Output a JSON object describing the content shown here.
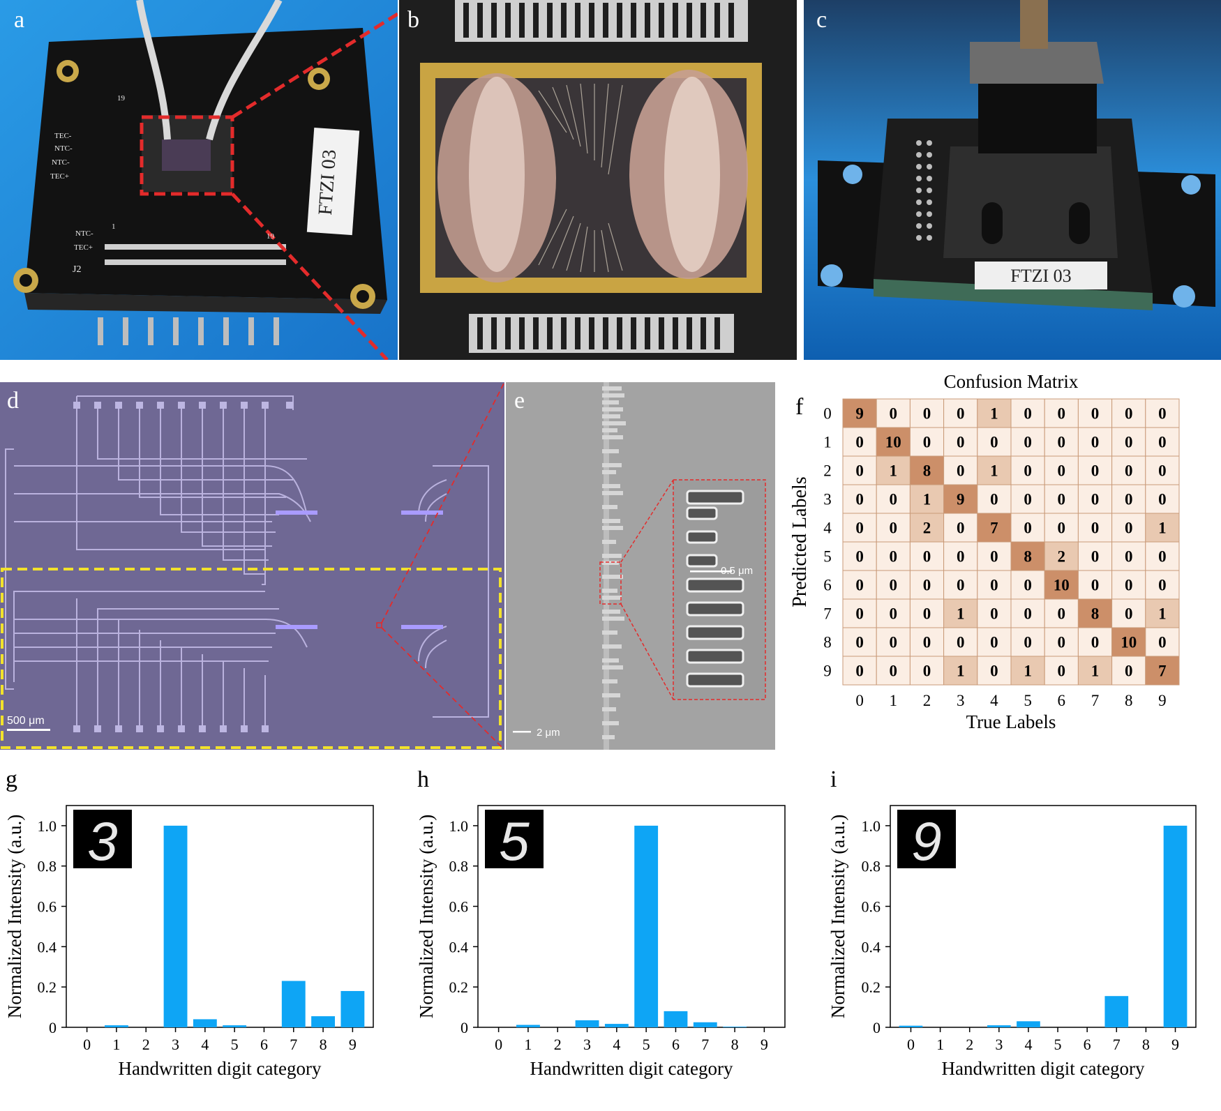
{
  "panels": {
    "a": {
      "label": "a",
      "board_text": "FTZI 03",
      "silk": [
        "TEC-",
        "NTC-",
        "NTC-",
        "TEC+",
        "NTC-",
        "TEC+",
        "J2",
        "19",
        "19",
        "1"
      ]
    },
    "b": {
      "label": "b"
    },
    "c": {
      "label": "c",
      "tag_text": "FTZI 03"
    },
    "d": {
      "label": "d",
      "scalebar": "500 μm"
    },
    "e": {
      "label": "e",
      "scalebar": "2 μm",
      "inset_scalebar": "0.5 μm"
    },
    "f": {
      "label": "f"
    },
    "g": {
      "label": "g",
      "digit": "3"
    },
    "h": {
      "label": "h",
      "digit": "5"
    },
    "i": {
      "label": "i",
      "digit": "9"
    }
  },
  "colors": {
    "bar": "#0ea5f5",
    "cm_diag": "#cc8f69",
    "cm_mid": "#e9c9b1",
    "cm_low": "#fbeee4",
    "cm_grid": "#c99a78",
    "photo_blue": "#1f8fe0",
    "micro_purple": "#6f6894",
    "sem_gray": "#a3a3a3",
    "dash_red": "#e32b2b",
    "dash_yellow": "#f2e22b"
  },
  "chart_data": [
    {
      "type": "heatmap",
      "title": "Confusion  Matrix",
      "xlabel": "True  Labels",
      "ylabel": "Predicted  Labels",
      "x_ticks": [
        "0",
        "1",
        "2",
        "3",
        "4",
        "5",
        "6",
        "7",
        "8",
        "9"
      ],
      "y_ticks": [
        "0",
        "1",
        "2",
        "3",
        "4",
        "5",
        "6",
        "7",
        "8",
        "9"
      ],
      "matrix": [
        [
          9,
          0,
          0,
          0,
          1,
          0,
          0,
          0,
          0,
          0
        ],
        [
          0,
          10,
          0,
          0,
          0,
          0,
          0,
          0,
          0,
          0
        ],
        [
          0,
          1,
          8,
          0,
          1,
          0,
          0,
          0,
          0,
          0
        ],
        [
          0,
          0,
          1,
          9,
          0,
          0,
          0,
          0,
          0,
          0
        ],
        [
          0,
          0,
          2,
          0,
          7,
          0,
          0,
          0,
          0,
          1
        ],
        [
          0,
          0,
          0,
          0,
          0,
          8,
          2,
          0,
          0,
          0
        ],
        [
          0,
          0,
          0,
          0,
          0,
          0,
          10,
          0,
          0,
          0
        ],
        [
          0,
          0,
          0,
          1,
          0,
          0,
          0,
          8,
          0,
          1
        ],
        [
          0,
          0,
          0,
          0,
          0,
          0,
          0,
          0,
          10,
          0
        ],
        [
          0,
          0,
          0,
          1,
          0,
          1,
          0,
          1,
          0,
          7
        ]
      ]
    },
    {
      "type": "bar",
      "xlabel": "Handwritten digit category",
      "ylabel": "Normalized Intensity (a.u.)",
      "categories": [
        "0",
        "1",
        "2",
        "3",
        "4",
        "5",
        "6",
        "7",
        "8",
        "9"
      ],
      "values": [
        0,
        0.01,
        0,
        1.0,
        0.04,
        0.01,
        0,
        0.23,
        0.055,
        0.18
      ],
      "ylim": [
        0,
        1.1
      ],
      "yticks": [
        "0",
        "0.2",
        "0.4",
        "0.6",
        "0.8",
        "1.0"
      ]
    },
    {
      "type": "bar",
      "xlabel": "Handwritten digit category",
      "ylabel": "Normalized Intensity (a.u.)",
      "categories": [
        "0",
        "1",
        "2",
        "3",
        "4",
        "5",
        "6",
        "7",
        "8",
        "9"
      ],
      "values": [
        0,
        0.012,
        0,
        0.035,
        0.017,
        1.0,
        0.08,
        0.025,
        0.003,
        0
      ],
      "ylim": [
        0,
        1.1
      ],
      "yticks": [
        "0",
        "0.2",
        "0.4",
        "0.6",
        "0.8",
        "1.0"
      ]
    },
    {
      "type": "bar",
      "xlabel": "Handwritten digit category",
      "ylabel": "Normalized Intensity (a.u.)",
      "categories": [
        "0",
        "1",
        "2",
        "3",
        "4",
        "5",
        "6",
        "7",
        "8",
        "9"
      ],
      "values": [
        0.008,
        0,
        0,
        0.01,
        0.03,
        0,
        0,
        0.155,
        0,
        1.0
      ],
      "ylim": [
        0,
        1.1
      ],
      "yticks": [
        "0",
        "0.2",
        "0.4",
        "0.6",
        "0.8",
        "1.0"
      ]
    }
  ]
}
